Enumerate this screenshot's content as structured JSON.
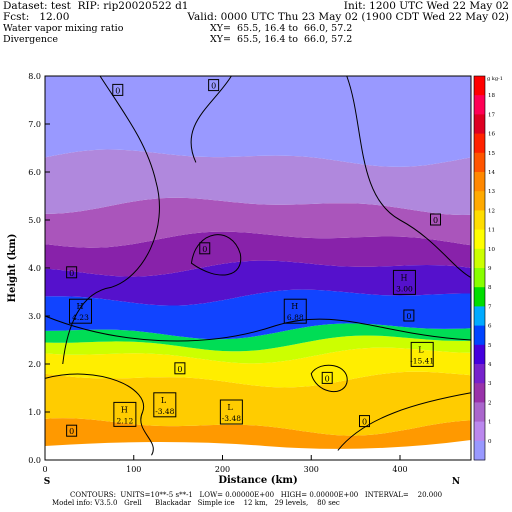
{
  "header": {
    "line1_left": "Dataset: test  RIP: rip20020522 d1",
    "line1_right": "Init: 1200 UTC Wed 22 May 02",
    "line2_left": "Fcst:   12.00",
    "line2_right": "Valid: 0000 UTC Thu 23 May 02 (1900 CDT Wed 22 May 02)",
    "line3_left": "Water vapor mixing ratio",
    "line3_right": "XY=  65.5, 16.4 to  66.0, 57.2",
    "line4_left": "Divergence",
    "line4_right": "XY=  65.5, 16.4 to  66.0, 57.2"
  },
  "footer": {
    "line1": "CONTOURS:  UNITS=10**-5 s**-1   LOW= 0.00000E+00   HIGH= 0.00000E+00   INTERVAL=    20.000",
    "line2": "Model info: V3.5.0   Grell      Blackadar   Simple ice    12 km,   29 levels,    80 sec"
  },
  "orientation": {
    "left": "S",
    "right": "N"
  },
  "colorbar": {
    "unit_label": "g kg-1",
    "labels": [
      "18",
      "17",
      "16",
      "15",
      "14",
      "13",
      "12",
      "11",
      "10",
      "9",
      "8",
      "7",
      "6",
      "5",
      "4",
      "3",
      "2",
      "1",
      "0"
    ],
    "colors": [
      "#ff0000",
      "#ff0055",
      "#dd0022",
      "#ff2200",
      "#ff5500",
      "#ff8800",
      "#ffaa00",
      "#ffdd00",
      "#ffff00",
      "#ccff00",
      "#88ff00",
      "#00dd00",
      "#00aaff",
      "#0044ff",
      "#4400dd",
      "#7722cc",
      "#9933aa",
      "#aa66cc",
      "#bb88ee",
      "#9999ff"
    ]
  },
  "chart_data": {
    "type": "heatmap",
    "title": "Water vapor mixing ratio",
    "xlabel": "Distance (km)",
    "ylabel": "Height (km)",
    "xlim": [
      0,
      480
    ],
    "ylim": [
      0,
      8
    ],
    "xticks": [
      "0",
      "100",
      "200",
      "300",
      "400"
    ],
    "xtick_values": [
      0,
      100,
      200,
      300,
      400
    ],
    "yticks": [
      "0.0",
      "1.0",
      "2.0",
      "3.0",
      "4.0",
      "5.0",
      "6.0",
      "7.0",
      "8.0"
    ],
    "ytick_values": [
      0,
      1,
      2,
      3,
      4,
      5,
      6,
      7,
      8
    ],
    "bands": [
      {
        "color": "#ff9900",
        "from": 0,
        "to": 0.7
      },
      {
        "color": "#ffcc00",
        "from": 0.7,
        "to": 1.7
      },
      {
        "color": "#ffee00",
        "from": 1.7,
        "to": 2.2
      },
      {
        "color": "#ccff00",
        "from": 2.2,
        "to": 2.45
      },
      {
        "color": "#00dd55",
        "from": 2.45,
        "to": 2.7
      },
      {
        "color": "#1144ff",
        "from": 2.7,
        "to": 3.4
      },
      {
        "color": "#5511cc",
        "from": 3.4,
        "to": 4.0
      },
      {
        "color": "#8822aa",
        "from": 4.0,
        "to": 4.6
      },
      {
        "color": "#aa55bb",
        "from": 4.6,
        "to": 5.3
      },
      {
        "color": "#b088dd",
        "from": 5.3,
        "to": 6.3
      },
      {
        "color": "#9999ff",
        "from": 6.3,
        "to": 8.0
      }
    ],
    "annotations": [
      {
        "kind": "H",
        "value": "4.23",
        "x": 40,
        "y": 3.1
      },
      {
        "kind": "H",
        "value": "6.88",
        "x": 282,
        "y": 3.1
      },
      {
        "kind": "H",
        "value": "3.00",
        "x": 405,
        "y": 3.7
      },
      {
        "kind": "L",
        "value": "-15.41",
        "x": 425,
        "y": 2.2
      },
      {
        "kind": "L",
        "value": "-3.48",
        "x": 135,
        "y": 1.15
      },
      {
        "kind": "L",
        "value": "-3.48",
        "x": 210,
        "y": 1.0
      },
      {
        "kind": "H",
        "value": "2.12",
        "x": 90,
        "y": 0.95
      }
    ],
    "zero_labels": [
      {
        "text": "0",
        "x": 82,
        "y": 7.7
      },
      {
        "text": "0",
        "x": 190,
        "y": 7.8
      },
      {
        "text": "0",
        "x": 180,
        "y": 4.4
      },
      {
        "text": "0",
        "x": 440,
        "y": 5.0
      },
      {
        "text": "0",
        "x": 30,
        "y": 3.9
      },
      {
        "text": "0",
        "x": 152,
        "y": 1.9
      },
      {
        "text": "0",
        "x": 318,
        "y": 1.7
      },
      {
        "text": "0",
        "x": 410,
        "y": 3.0
      },
      {
        "text": "0",
        "x": 30,
        "y": 0.6
      },
      {
        "text": "0",
        "x": 360,
        "y": 0.8
      }
    ]
  }
}
